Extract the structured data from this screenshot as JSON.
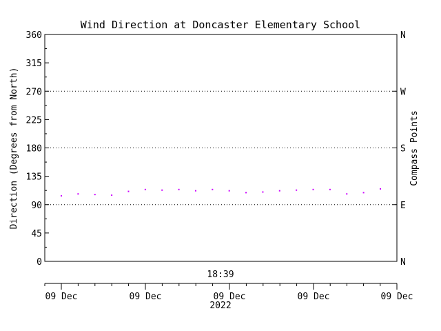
{
  "chart_data": {
    "type": "scatter",
    "title": "Wind Direction at Doncaster Elementary School",
    "ylabel": "Direction (Degrees from North)",
    "ylabel_right": "Compass Points",
    "ylim": [
      0,
      360
    ],
    "yticks": [
      0,
      45,
      90,
      135,
      180,
      225,
      270,
      315,
      360
    ],
    "compass_ticks": [
      {
        "value": 0,
        "label": "N"
      },
      {
        "value": 90,
        "label": "E"
      },
      {
        "value": 180,
        "label": "S"
      },
      {
        "value": 270,
        "label": "W"
      },
      {
        "value": 360,
        "label": "N"
      }
    ],
    "dotted_gridlines_at": [
      90,
      180,
      270
    ],
    "time_label": "18:39",
    "x_tick_labels": [
      "09 Dec",
      "09 Dec",
      "09 Dec",
      "09 Dec",
      "09 Dec"
    ],
    "x_year_label": "2022",
    "marker_color": "#cc00ff",
    "series": [
      {
        "x": [
          0,
          1,
          2,
          3,
          4,
          5,
          6,
          7,
          8,
          9,
          10,
          11,
          12,
          13,
          14,
          15,
          16,
          17,
          18,
          19
        ],
        "values": [
          104,
          107,
          106,
          105,
          111,
          114,
          113,
          114,
          112,
          114,
          112,
          109,
          110,
          112,
          113,
          114,
          114,
          107,
          109,
          115
        ]
      }
    ]
  }
}
